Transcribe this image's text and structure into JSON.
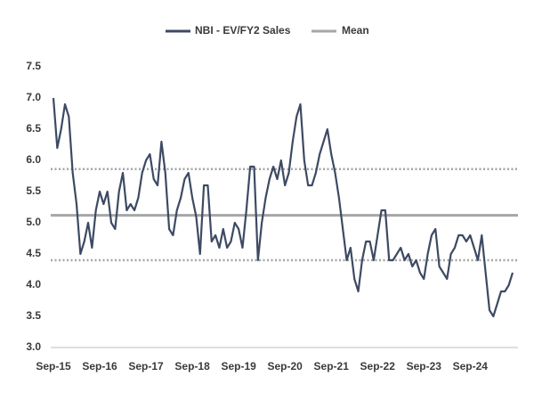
{
  "chart_data": {
    "type": "line",
    "categories": [
      "Sep-15",
      null,
      null,
      null,
      null,
      null,
      null,
      null,
      null,
      null,
      null,
      null,
      "Sep-16",
      null,
      null,
      null,
      null,
      null,
      null,
      null,
      null,
      null,
      null,
      null,
      "Sep-17",
      null,
      null,
      null,
      null,
      null,
      null,
      null,
      null,
      null,
      null,
      null,
      "Sep-18",
      null,
      null,
      null,
      null,
      null,
      null,
      null,
      null,
      null,
      null,
      null,
      "Sep-19",
      null,
      null,
      null,
      null,
      null,
      null,
      null,
      null,
      null,
      null,
      null,
      "Sep-20",
      null,
      null,
      null,
      null,
      null,
      null,
      null,
      null,
      null,
      null,
      null,
      "Sep-21",
      null,
      null,
      null,
      null,
      null,
      null,
      null,
      null,
      null,
      null,
      null,
      "Sep-22",
      null,
      null,
      null,
      null,
      null,
      null,
      null,
      null,
      null,
      null,
      null,
      "Sep-23",
      null,
      null,
      null,
      null,
      null,
      null,
      null,
      null,
      null,
      null,
      null,
      "Sep-24",
      null,
      null,
      null,
      null,
      null,
      null,
      null,
      null,
      null,
      null,
      null
    ],
    "series": [
      {
        "name": "NBI - EV/FY2 Sales",
        "color": "#3d4a63",
        "values": [
          7.0,
          6.2,
          6.5,
          6.9,
          6.7,
          5.8,
          5.3,
          4.5,
          4.7,
          5.0,
          4.6,
          5.2,
          5.5,
          5.3,
          5.5,
          5.0,
          4.9,
          5.5,
          5.8,
          5.2,
          5.3,
          5.2,
          5.4,
          5.8,
          6.0,
          6.1,
          5.7,
          5.6,
          6.3,
          5.8,
          4.9,
          4.8,
          5.2,
          5.4,
          5.7,
          5.8,
          5.4,
          5.1,
          4.5,
          5.6,
          5.6,
          4.7,
          4.8,
          4.6,
          4.9,
          4.6,
          4.7,
          5.0,
          4.9,
          4.6,
          5.2,
          5.9,
          5.9,
          4.4,
          5.0,
          5.4,
          5.7,
          5.9,
          5.7,
          6.0,
          5.6,
          5.8,
          6.3,
          6.7,
          6.9,
          6.0,
          5.6,
          5.6,
          5.8,
          6.1,
          6.3,
          6.5,
          6.1,
          5.8,
          5.4,
          4.9,
          4.4,
          4.6,
          4.1,
          3.9,
          4.4,
          4.7,
          4.7,
          4.4,
          4.8,
          5.2,
          5.2,
          4.4,
          4.4,
          4.5,
          4.6,
          4.4,
          4.5,
          4.3,
          4.4,
          4.2,
          4.1,
          4.5,
          4.8,
          4.9,
          4.3,
          4.2,
          4.1,
          4.5,
          4.6,
          4.8,
          4.8,
          4.7,
          4.8,
          4.6,
          4.4,
          4.8,
          4.2,
          3.6,
          3.5,
          3.7,
          3.9,
          3.9,
          4.0,
          4.2
        ]
      }
    ],
    "mean": {
      "name": "Mean",
      "value": 5.12,
      "color": "#a6a6a6"
    },
    "bands": {
      "values": [
        5.86,
        4.4
      ],
      "color": "#a6a6a6"
    },
    "ylim": [
      3,
      7.5
    ],
    "yticks": [
      {
        "value": 3,
        "label": "3.0"
      },
      3.5,
      {
        "value": 4,
        "label": "4.0"
      },
      4.5,
      {
        "value": 5,
        "label": "5.0"
      },
      5.5,
      {
        "value": 6,
        "label": "6.0"
      },
      6.5,
      {
        "value": 7,
        "label": "7.0"
      },
      7.5
    ],
    "grid": false
  }
}
